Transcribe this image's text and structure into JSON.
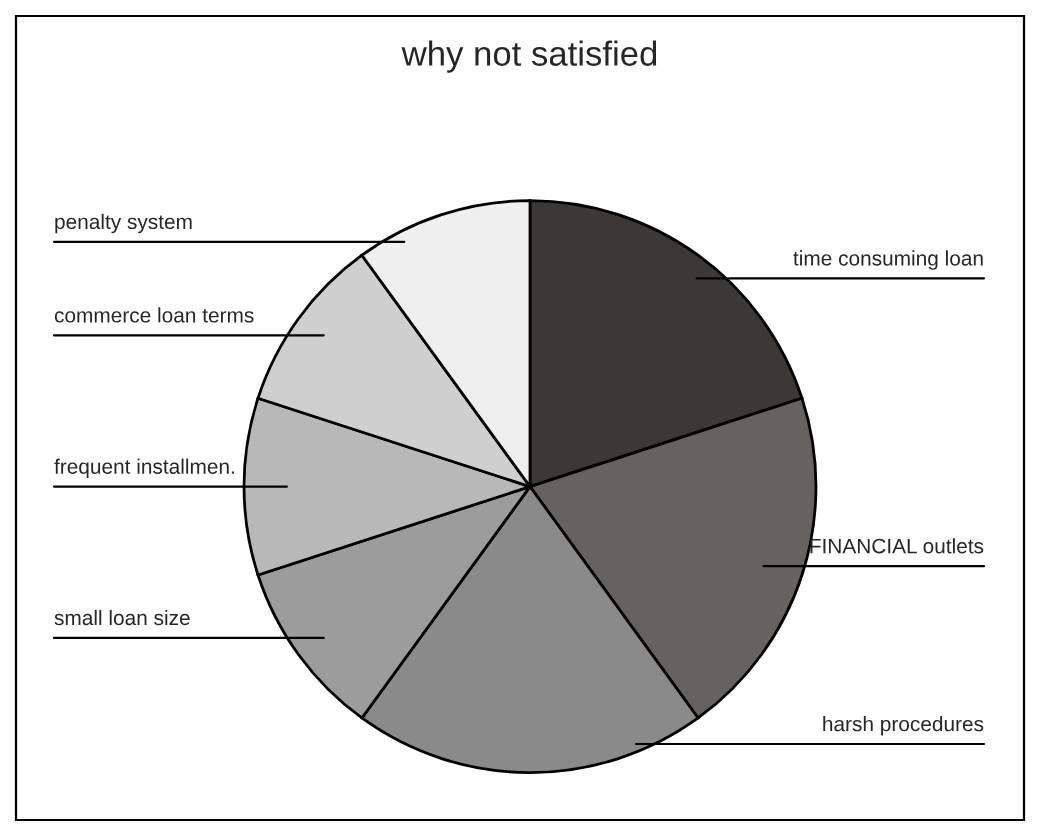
{
  "chart_data": {
    "type": "pie",
    "title": "why not satisfied",
    "categories": [
      "time consuming loan",
      "FINANCIAL outlets",
      "harsh procedures",
      "small loan size",
      "frequent installmen.",
      "commerce loan terms",
      "penalty system"
    ],
    "values": [
      20,
      20,
      20,
      10,
      10,
      10,
      10
    ],
    "colors": [
      "#3c3836",
      "#666260",
      "#8a8a8a",
      "#9c9c9c",
      "#b8b8b8",
      "#cfcfcf",
      "#efefef"
    ]
  }
}
